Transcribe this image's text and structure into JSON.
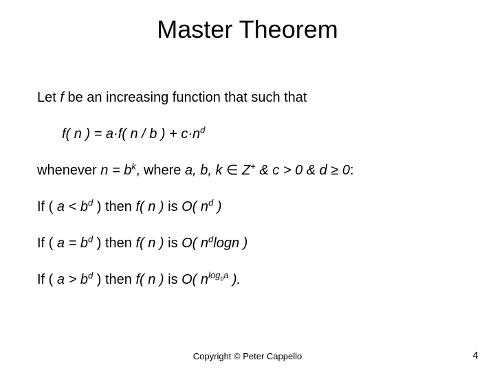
{
  "title": "Master Theorem",
  "intro_pre": "Let ",
  "intro_f": "f",
  "intro_post": " be an increasing function that such that",
  "eq_f": "f( n ) = a·f( n / b ) + c·n",
  "eq_exp": "d",
  "when_pre": "whenever ",
  "when_n": "n = b",
  "when_k": "k",
  "when_mid": ", where ",
  "when_vars": "a, b, k",
  "when_in": " ∈ ",
  "when_Z": "Z",
  "when_plus": "+",
  "when_c": " & c > 0",
  "when_d": " & d ≥ 0",
  "when_colon": ":",
  "case1_pre": "If ( ",
  "case1_a": "a",
  "case1_lt": " < ",
  "case1_b": "b",
  "case1_d": "d",
  "case1_rp": " ) ",
  "case1_then": " then ",
  "case1_fn": "f( n )",
  "case1_is": " is ",
  "case1_O": "O( n",
  "case1_Od": "d",
  "case1_Oend": " )",
  "case2_pre": "If ( ",
  "case2_a": "a",
  "case2_eq": " = ",
  "case2_b": "b",
  "case2_d": "d",
  "case2_rp": " ) ",
  "case2_then": " then ",
  "case2_fn": "f( n )",
  "case2_is": " is ",
  "case2_O": "O( n",
  "case2_Od": "d",
  "case2_log": "logn )",
  "case3_pre": "If ( ",
  "case3_a": "a",
  "case3_gt": " > ",
  "case3_b": "b",
  "case3_d": "d",
  "case3_rp": " ) ",
  "case3_then": " then ",
  "case3_fn": "f( n )",
  "case3_is": " is ",
  "case3_O": "O( n",
  "case3_logb": "log",
  "case3_subb": "b",
  "case3_supa": "a",
  "case3_end": " ).",
  "copyright": "Copyright © Peter Cappello",
  "pagenum": "4"
}
